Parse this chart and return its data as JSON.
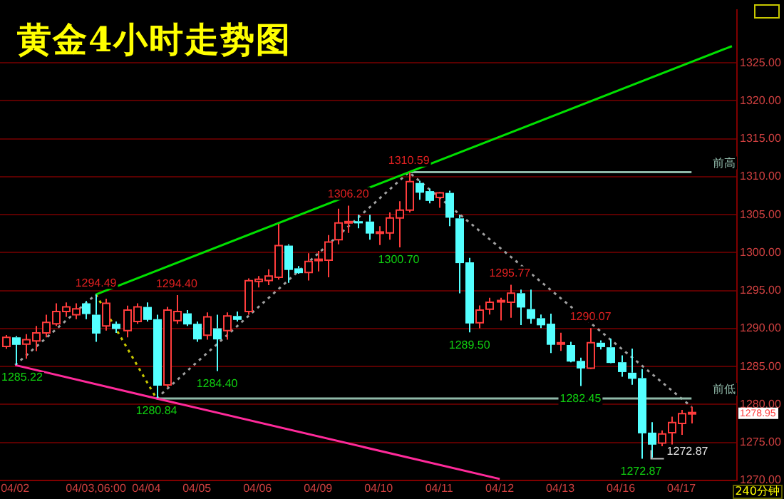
{
  "chart_data": {
    "type": "candlestick",
    "title": "黄金4小时走势图",
    "categories": [
      null,
      "04/02",
      null,
      null,
      null,
      null,
      null,
      null,
      null,
      "04/03,06:00",
      null,
      null,
      null,
      null,
      "04/04",
      null,
      null,
      null,
      null,
      "04/05",
      null,
      null,
      null,
      null,
      null,
      "04/06",
      null,
      null,
      null,
      null,
      null,
      "04/09",
      null,
      null,
      null,
      null,
      null,
      "04/10",
      null,
      null,
      null,
      null,
      null,
      "04/11",
      null,
      null,
      null,
      null,
      null,
      "04/12",
      null,
      null,
      null,
      null,
      null,
      "04/13",
      null,
      null,
      null,
      null,
      null,
      "04/16",
      null,
      null,
      null,
      null,
      null,
      "04/17",
      null,
      null,
      null,
      null,
      null
    ],
    "ohlc": [
      [
        1287.65,
        1289.15,
        1287.35,
        1288.85
      ],
      [
        1288.85,
        1289.0,
        1285.22,
        1287.95
      ],
      [
        1287.95,
        1289.26,
        1286.03,
        1288.55
      ],
      [
        1288.37,
        1290.34,
        1287.05,
        1289.44
      ],
      [
        1289.44,
        1291.83,
        1288.85,
        1290.82
      ],
      [
        1290.64,
        1293.33,
        1290.34,
        1292.25
      ],
      [
        1292.25,
        1293.45,
        1291.54,
        1292.85
      ],
      [
        1291.83,
        1293.33,
        1291.24,
        1292.61
      ],
      [
        1293.33,
        1293.63,
        1291.24,
        1292.01
      ],
      [
        1291.83,
        1294.49,
        1288.25,
        1289.44
      ],
      [
        1290.34,
        1293.93,
        1289.74,
        1293.33
      ],
      [
        1290.64,
        1290.94,
        1289.44,
        1290.04
      ],
      [
        1289.74,
        1293.03,
        1288.85,
        1292.43
      ],
      [
        1290.94,
        1293.33,
        1290.64,
        1292.85
      ],
      [
        1292.85,
        1293.45,
        1290.94,
        1291.24
      ],
      [
        1291.24,
        1291.83,
        1280.84,
        1282.57
      ],
      [
        1282.57,
        1292.85,
        1282.27,
        1292.43
      ],
      [
        1291.06,
        1294.4,
        1290.64,
        1292.25
      ],
      [
        1292.01,
        1292.43,
        1290.34,
        1290.64
      ],
      [
        1290.64,
        1290.94,
        1288.25,
        1288.67
      ],
      [
        1289.14,
        1292.13,
        1288.55,
        1291.54
      ],
      [
        1290.04,
        1291.83,
        1284.4,
        1288.67
      ],
      [
        1289.74,
        1292.13,
        1288.55,
        1291.66
      ],
      [
        1291.66,
        1292.25,
        1290.94,
        1291.24
      ],
      [
        1292.25,
        1296.62,
        1291.83,
        1296.32
      ],
      [
        1296.21,
        1296.93,
        1295.43,
        1296.51
      ],
      [
        1296.33,
        1297.82,
        1295.73,
        1296.93
      ],
      [
        1296.75,
        1303.8,
        1296.45,
        1300.93
      ],
      [
        1300.93,
        1301.11,
        1296.03,
        1297.82
      ],
      [
        1297.94,
        1298.24,
        1297.22,
        1297.4
      ],
      [
        1297.4,
        1299.92,
        1296.33,
        1298.84
      ],
      [
        1298.96,
        1300.22,
        1297.52,
        1299.14
      ],
      [
        1299.02,
        1302.31,
        1296.75,
        1301.41
      ],
      [
        1301.71,
        1305.8,
        1301.11,
        1303.92
      ],
      [
        1303.92,
        1306.2,
        1302.61,
        1304.1
      ],
      [
        1304.15,
        1305.0,
        1303.21,
        1303.95
      ],
      [
        1304.1,
        1305.0,
        1301.71,
        1302.61
      ],
      [
        1302.55,
        1303.5,
        1301.0,
        1302.73
      ],
      [
        1302.61,
        1305.3,
        1301.71,
        1304.58
      ],
      [
        1304.58,
        1306.79,
        1300.7,
        1305.6
      ],
      [
        1305.6,
        1310.59,
        1305.3,
        1309.36
      ],
      [
        1309.18,
        1309.48,
        1306.97,
        1307.99
      ],
      [
        1308.11,
        1308.41,
        1306.49,
        1306.91
      ],
      [
        1307.27,
        1307.99,
        1305.9,
        1307.87
      ],
      [
        1307.87,
        1308.17,
        1303.5,
        1304.7
      ],
      [
        1304.52,
        1305.0,
        1294.65,
        1298.72
      ],
      [
        1298.72,
        1299.32,
        1289.5,
        1290.77
      ],
      [
        1290.77,
        1293.04,
        1290.05,
        1292.44
      ],
      [
        1292.56,
        1294.06,
        1291.84,
        1293.46
      ],
      [
        1293.58,
        1294.06,
        1291.07,
        1293.7
      ],
      [
        1293.46,
        1295.77,
        1291.43,
        1294.66
      ],
      [
        1294.66,
        1295.14,
        1290.47,
        1292.87
      ],
      [
        1292.57,
        1295.14,
        1290.65,
        1291.37
      ],
      [
        1291.37,
        1291.85,
        1290.06,
        1290.53
      ],
      [
        1290.65,
        1291.97,
        1286.77,
        1287.96
      ],
      [
        1287.96,
        1289.46,
        1287.07,
        1288.14
      ],
      [
        1287.84,
        1288.26,
        1285.57,
        1285.75
      ],
      [
        1285.75,
        1286.17,
        1282.45,
        1284.85
      ],
      [
        1284.79,
        1290.07,
        1284.67,
        1288.14
      ],
      [
        1288.14,
        1288.44,
        1287.24,
        1287.66
      ],
      [
        1287.54,
        1288.68,
        1285.45,
        1285.57
      ],
      [
        1285.57,
        1286.47,
        1283.66,
        1284.37
      ],
      [
        1284.19,
        1287.36,
        1282.6,
        1283.48
      ],
      [
        1283.48,
        1284.67,
        1272.87,
        1276.3
      ],
      [
        1276.3,
        1277.68,
        1273.01,
        1274.81
      ],
      [
        1274.93,
        1276.6,
        1274.51,
        1276.12
      ],
      [
        1276.3,
        1278.4,
        1274.51,
        1277.62
      ],
      [
        1277.5,
        1279.29,
        1276.0,
        1278.81
      ],
      [
        1278.8,
        1279.71,
        1277.5,
        1278.95
      ],
      null,
      null,
      null,
      null
    ],
    "series": [
      {
        "type": "line",
        "color": "#00e000",
        "line_style": "solid",
        "values": [
          null,
          null,
          null,
          null,
          null,
          null,
          null,
          null,
          null,
          1294.5,
          null,
          null,
          null,
          null,
          null,
          null,
          null,
          null,
          null,
          null,
          null,
          null,
          null,
          null,
          null,
          null,
          null,
          null,
          null,
          null,
          null,
          null,
          null,
          null,
          null,
          null,
          null,
          null,
          null,
          null,
          1310.6,
          null,
          null,
          null,
          null,
          null,
          null,
          null,
          null,
          null,
          null,
          null,
          null,
          null,
          null,
          null,
          null,
          null,
          null,
          null,
          null,
          null,
          null,
          null,
          null,
          null,
          null,
          null,
          null,
          null,
          null,
          null,
          1327.2
        ]
      },
      {
        "type": "line",
        "color": "#ff2a9a",
        "line_style": "solid",
        "values": [
          null,
          1285.2,
          null,
          null,
          null,
          null,
          null,
          null,
          null,
          null,
          null,
          null,
          null,
          null,
          null,
          1280.8,
          null,
          null,
          null,
          null,
          null,
          null,
          null,
          null,
          null,
          null,
          null,
          null,
          null,
          null,
          null,
          null,
          null,
          null,
          null,
          null,
          null,
          null,
          null,
          null,
          null,
          null,
          null,
          null,
          null,
          null,
          null,
          null,
          null,
          1270.2,
          null,
          null,
          null,
          null,
          null,
          null,
          null,
          null,
          null,
          null,
          null,
          null,
          null,
          null,
          null,
          null,
          null,
          null,
          null,
          null,
          null,
          null,
          null
        ]
      },
      {
        "type": "line",
        "name": "前高",
        "color": "#8fb8a8",
        "line_style": "solid",
        "values": [
          null,
          null,
          null,
          null,
          null,
          null,
          null,
          null,
          null,
          null,
          null,
          null,
          null,
          null,
          null,
          null,
          null,
          null,
          null,
          null,
          null,
          null,
          null,
          null,
          null,
          null,
          null,
          null,
          null,
          null,
          null,
          null,
          null,
          null,
          null,
          null,
          null,
          null,
          null,
          null,
          1310.6,
          null,
          null,
          null,
          null,
          null,
          null,
          null,
          null,
          null,
          null,
          null,
          null,
          null,
          null,
          null,
          null,
          null,
          null,
          null,
          null,
          null,
          null,
          null,
          null,
          null,
          null,
          null,
          1310.6,
          null,
          null,
          null,
          null
        ]
      },
      {
        "type": "line",
        "name": "前低",
        "color": "#8fb8a8",
        "line_style": "solid",
        "values": [
          null,
          null,
          null,
          null,
          null,
          null,
          null,
          null,
          null,
          null,
          null,
          null,
          null,
          null,
          null,
          1280.8,
          null,
          null,
          null,
          null,
          null,
          null,
          null,
          null,
          null,
          null,
          null,
          null,
          null,
          null,
          null,
          null,
          null,
          null,
          null,
          null,
          null,
          null,
          null,
          null,
          null,
          null,
          null,
          null,
          null,
          null,
          null,
          null,
          null,
          null,
          null,
          null,
          null,
          null,
          null,
          null,
          null,
          null,
          null,
          null,
          null,
          null,
          null,
          null,
          null,
          null,
          null,
          null,
          1280.8,
          null,
          null,
          null,
          null
        ]
      },
      {
        "type": "line",
        "color": "#a0a0a0",
        "line_style": "dotted",
        "values": [
          null,
          1285.2,
          null,
          null,
          null,
          null,
          null,
          null,
          null,
          1294.5,
          null,
          null,
          null,
          null,
          null,
          null,
          null,
          null,
          null,
          null,
          null,
          null,
          null,
          null,
          null,
          null,
          null,
          null,
          null,
          null,
          null,
          null,
          null,
          null,
          null,
          null,
          null,
          null,
          null,
          null,
          null,
          null,
          null,
          null,
          null,
          null,
          null,
          null,
          null,
          null,
          null,
          null,
          null,
          null,
          null,
          null,
          null,
          null,
          null,
          null,
          null,
          null,
          null,
          null,
          null,
          null,
          null,
          null,
          null,
          null,
          null,
          null,
          null
        ]
      },
      {
        "type": "line",
        "color": "#c8c800",
        "line_style": "dotted",
        "values": [
          null,
          null,
          null,
          null,
          null,
          null,
          null,
          null,
          null,
          1294.5,
          null,
          null,
          null,
          null,
          null,
          1280.8,
          null,
          null,
          null,
          null,
          null,
          null,
          null,
          null,
          null,
          null,
          null,
          null,
          null,
          null,
          null,
          null,
          null,
          null,
          null,
          null,
          null,
          null,
          null,
          null,
          null,
          null,
          null,
          null,
          null,
          null,
          null,
          null,
          null,
          null,
          null,
          null,
          null,
          null,
          null,
          null,
          null,
          null,
          null,
          null,
          null,
          null,
          null,
          null,
          null,
          null,
          null,
          null,
          null,
          null,
          null,
          null,
          null
        ]
      },
      {
        "type": "line",
        "color": "#a0a0a0",
        "line_style": "dotted",
        "values": [
          null,
          null,
          null,
          null,
          null,
          null,
          null,
          null,
          null,
          null,
          null,
          null,
          null,
          null,
          null,
          1280.8,
          null,
          null,
          null,
          null,
          null,
          null,
          null,
          null,
          null,
          null,
          null,
          null,
          null,
          null,
          null,
          null,
          null,
          null,
          null,
          null,
          null,
          null,
          null,
          null,
          1310.6,
          null,
          null,
          null,
          null,
          null,
          null,
          null,
          null,
          null,
          null,
          null,
          null,
          null,
          null,
          null,
          null,
          null,
          null,
          null,
          null,
          null,
          null,
          null,
          null,
          null,
          null,
          null,
          1279.7,
          null,
          null,
          null,
          null
        ]
      }
    ],
    "ylim": [
      1270,
      1332
    ],
    "yticks": [
      {
        "value": 1270,
        "label": "1270.00"
      },
      {
        "value": 1275,
        "label": "1275.00"
      },
      {
        "value": 1280,
        "label": "1280.00"
      },
      {
        "value": 1285,
        "label": "1285.00"
      },
      {
        "value": 1290,
        "label": "1290.00"
      },
      {
        "value": 1295,
        "label": "1295.00"
      },
      {
        "value": 1300,
        "label": "1300.00"
      },
      {
        "value": 1305,
        "label": "1305.00"
      },
      {
        "value": 1310,
        "label": "1310.00"
      },
      {
        "value": 1315,
        "label": "1315.00"
      },
      {
        "value": 1320,
        "label": "1320.00"
      },
      {
        "value": 1325,
        "label": "1325.00"
      }
    ],
    "grid": "y",
    "legend": false,
    "marker": "none",
    "annotations": [
      {
        "text": "1294.49",
        "y": 1294.49
      },
      {
        "text": "1285.22",
        "y": 1285.22
      },
      {
        "text": "1294.40",
        "y": 1294.4
      },
      {
        "text": "1280.84",
        "y": 1280.84
      },
      {
        "text": "1284.40",
        "y": 1284.4
      },
      {
        "text": "1306.20",
        "y": 1306.2
      },
      {
        "text": "1300.70",
        "y": 1300.7
      },
      {
        "text": "1310.59",
        "y": 1310.59
      },
      {
        "text": "1289.50",
        "y": 1289.5
      },
      {
        "text": "1295.77",
        "y": 1295.77
      },
      {
        "text": "1290.07",
        "y": 1290.07
      },
      {
        "text": "1282.45",
        "y": 1282.45
      },
      "1272.87",
      "1272.87",
      "1278.95",
      "240分钟"
    ]
  }
}
